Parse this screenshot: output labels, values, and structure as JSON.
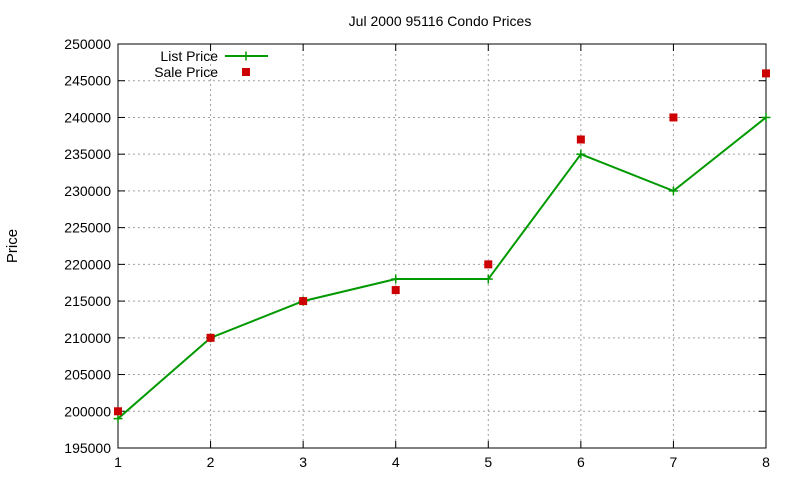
{
  "chart_data": {
    "type": "line",
    "title": "Jul 2000 95116 Condo Prices",
    "xlabel": "",
    "ylabel": "Price",
    "x": [
      1,
      2,
      3,
      4,
      5,
      6,
      7,
      8
    ],
    "xlim": [
      1,
      8
    ],
    "ylim": [
      195000,
      250000
    ],
    "xticks": [
      "1",
      "2",
      "3",
      "4",
      "5",
      "6",
      "7",
      "8"
    ],
    "yticks": [
      "195000",
      "200000",
      "205000",
      "210000",
      "215000",
      "220000",
      "225000",
      "230000",
      "235000",
      "240000",
      "245000",
      "250000"
    ],
    "grid": true,
    "legend_position": "top-left",
    "series": [
      {
        "name": "List Price",
        "style": "line+cross",
        "color": "#009900",
        "values": [
          199000,
          210000,
          215000,
          218000,
          218000,
          235000,
          230000,
          240000
        ]
      },
      {
        "name": "Sale Price",
        "style": "square",
        "color": "#cc0000",
        "values": [
          200000,
          210000,
          215000,
          216500,
          220000,
          237000,
          240000,
          246000
        ]
      }
    ]
  }
}
